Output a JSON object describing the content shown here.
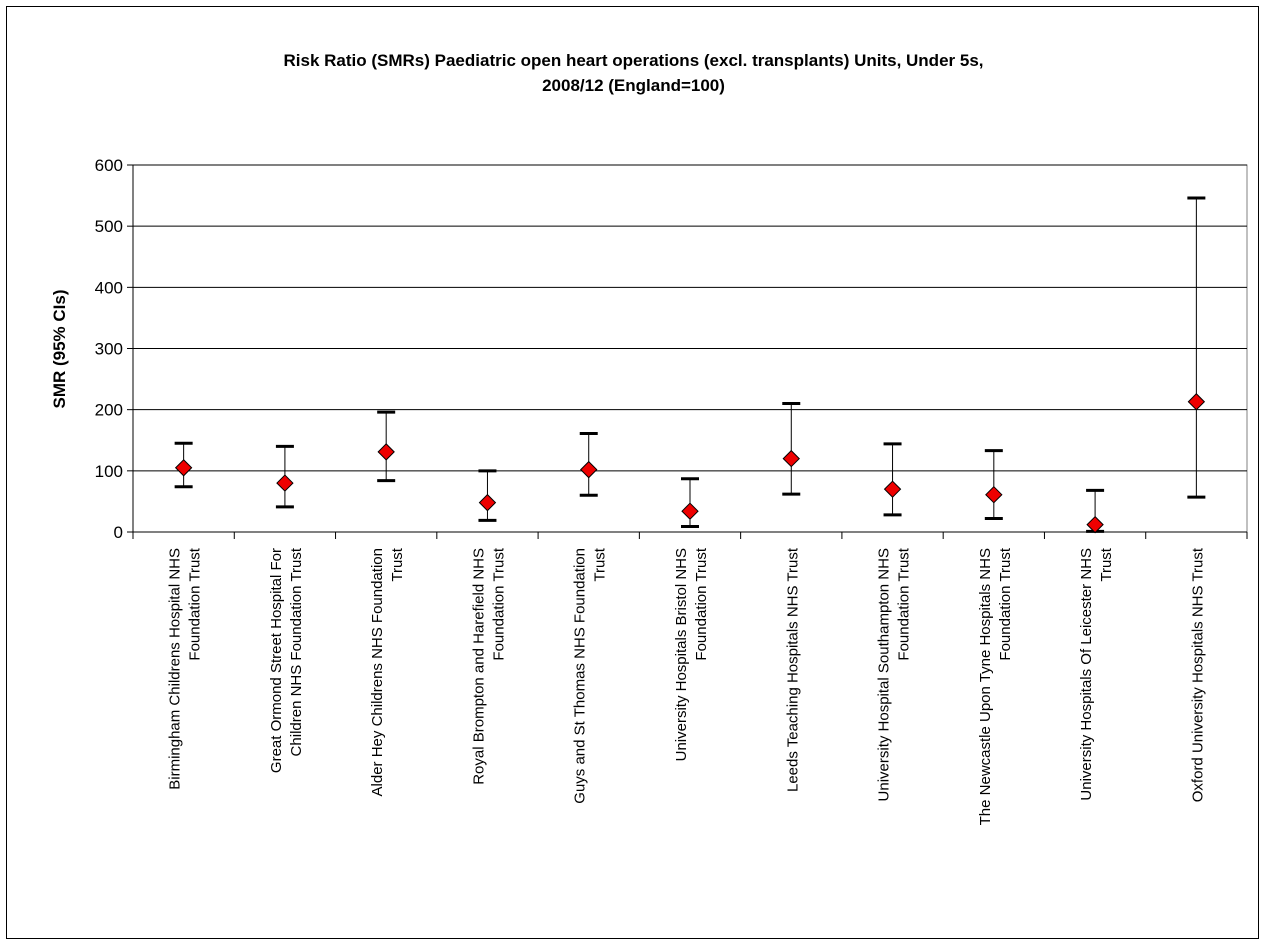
{
  "chart_data": {
    "type": "scatter",
    "title_line1": "Risk Ratio (SMRs) Paediatric open heart operations (excl. transplants) Units, Under 5s,",
    "title_line2": "2008/12 (England=100)",
    "ylabel": "SMR (95% CIs)",
    "xlabel": "",
    "ylim": [
      0,
      600
    ],
    "yticks": [
      0,
      100,
      200,
      300,
      400,
      500,
      600
    ],
    "grid": true,
    "legend": "none",
    "marker": "diamond",
    "marker_color": "#ee0000",
    "categories": [
      [
        "Birmingham Childrens Hospital NHS",
        "Foundation Trust"
      ],
      [
        "Great Ormond Street Hospital For",
        "Children NHS Foundation Trust"
      ],
      [
        "Alder Hey Childrens NHS Foundation",
        "Trust"
      ],
      [
        "Royal Brompton and Harefield NHS",
        "Foundation Trust"
      ],
      [
        "Guys and St Thomas NHS Foundation",
        "Trust"
      ],
      [
        "University Hospitals Bristol NHS",
        "Foundation Trust"
      ],
      [
        "Leeds Teaching Hospitals NHS Trust"
      ],
      [
        "University Hospital Southampton NHS",
        "Foundation Trust"
      ],
      [
        "The Newcastle Upon Tyne Hospitals NHS",
        "Foundation Trust"
      ],
      [
        "University Hospitals Of Leicester NHS",
        "Trust"
      ],
      [
        "Oxford University Hospitals NHS Trust"
      ]
    ],
    "smr": [
      105,
      80,
      131,
      48,
      102,
      34,
      120,
      70,
      61,
      12,
      213
    ],
    "lower": [
      74,
      41,
      84,
      19,
      60,
      9,
      62,
      28,
      22,
      1,
      57
    ],
    "upper": [
      145,
      140,
      196,
      100,
      161,
      87,
      210,
      144,
      133,
      68,
      546
    ]
  }
}
